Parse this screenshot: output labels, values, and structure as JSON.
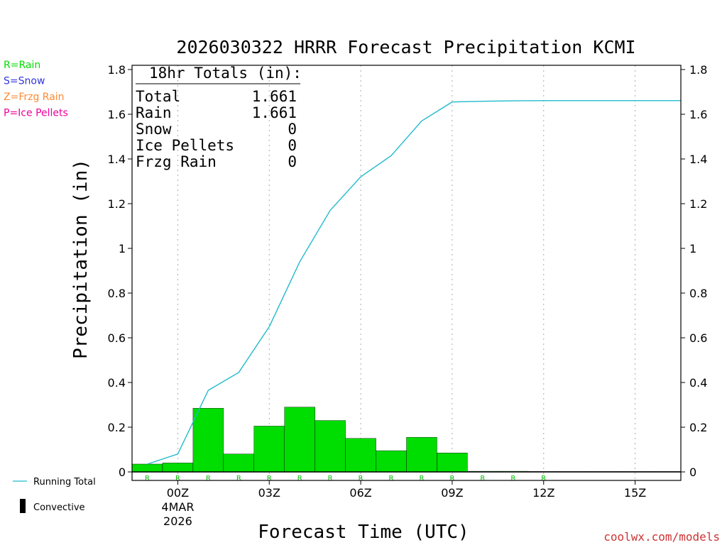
{
  "colors": {
    "rain": "#00dd00",
    "snow": "#3333dd",
    "frzg": "#ff8833",
    "ice": "#ee0099",
    "running_total": "#22bbcc",
    "bar": "#00dd00",
    "credit": "#cc3333"
  },
  "legend_types": [
    {
      "label": "R=Rain",
      "color": "#00dd00"
    },
    {
      "label": "S=Snow",
      "color": "#3333dd"
    },
    {
      "label": "Z=Frzg Rain",
      "color": "#ff8833"
    },
    {
      "label": "P=Ice Pellets",
      "color": "#ee0099"
    }
  ],
  "legend_lines": {
    "running_total": "Running Total",
    "convective": "Convective"
  },
  "totals_box": {
    "header": "18hr Totals (in):",
    "rows": [
      {
        "label": "Total",
        "value": "1.661"
      },
      {
        "label": "Rain",
        "value": "1.661"
      },
      {
        "label": "Snow",
        "value": "0"
      },
      {
        "label": "Ice Pellets",
        "value": "0"
      },
      {
        "label": "Frzg Rain",
        "value": "0"
      }
    ]
  },
  "credit": "coolwx.com/models",
  "chart_data": {
    "type": "bar",
    "title": "2026030322 HRRR Forecast Precipitation KCMI",
    "xlabel": "Forecast Time (UTC)",
    "ylabel": "Precipitation (in)",
    "ylim": [
      0,
      1.8
    ],
    "xlim": [
      -1.5,
      16.5
    ],
    "yticks": [
      "0",
      "0.2",
      "0.4",
      "0.6",
      "0.8",
      "1",
      "1.2",
      "1.4",
      "1.6",
      "1.8"
    ],
    "ytick_values": [
      0,
      0.2,
      0.4,
      0.6,
      0.8,
      1.0,
      1.2,
      1.4,
      1.6,
      1.8
    ],
    "xticks": [
      {
        "hour": 0,
        "label": "00Z",
        "sub1": "4MAR",
        "sub2": "2026"
      },
      {
        "hour": 3,
        "label": "03Z",
        "sub1": "",
        "sub2": ""
      },
      {
        "hour": 6,
        "label": "06Z",
        "sub1": "",
        "sub2": ""
      },
      {
        "hour": 9,
        "label": "09Z",
        "sub1": "",
        "sub2": ""
      },
      {
        "hour": 12,
        "label": "12Z",
        "sub1": "",
        "sub2": ""
      },
      {
        "hour": 15,
        "label": "15Z",
        "sub1": "",
        "sub2": ""
      }
    ],
    "grid": "vertical-dotted",
    "bars": {
      "name": "Hourly Precipitation",
      "hours": [
        -1,
        0,
        1,
        2,
        3,
        4,
        5,
        6,
        7,
        8,
        9,
        10,
        11,
        12,
        13,
        14,
        15,
        16
      ],
      "values": [
        0.035,
        0.04,
        0.285,
        0.08,
        0.205,
        0.29,
        0.23,
        0.15,
        0.095,
        0.155,
        0.085,
        0.003,
        0.003,
        0.002,
        0.0,
        0.0,
        0.0,
        0.0
      ],
      "ptype": [
        "R",
        "R",
        "R",
        "R",
        "R",
        "R",
        "R",
        "R",
        "R",
        "R",
        "R",
        "R",
        "R",
        "R",
        "",
        "",
        "",
        ""
      ]
    },
    "running_total": {
      "name": "Running Total",
      "x": [
        -1,
        0,
        1,
        2,
        3,
        4,
        5,
        6,
        7,
        8,
        9,
        10,
        11,
        12,
        13,
        14,
        15,
        16.5
      ],
      "values": [
        0.035,
        0.08,
        0.365,
        0.445,
        0.65,
        0.94,
        1.17,
        1.32,
        1.415,
        1.57,
        1.655,
        1.658,
        1.66,
        1.661,
        1.661,
        1.661,
        1.661,
        1.661
      ]
    }
  }
}
